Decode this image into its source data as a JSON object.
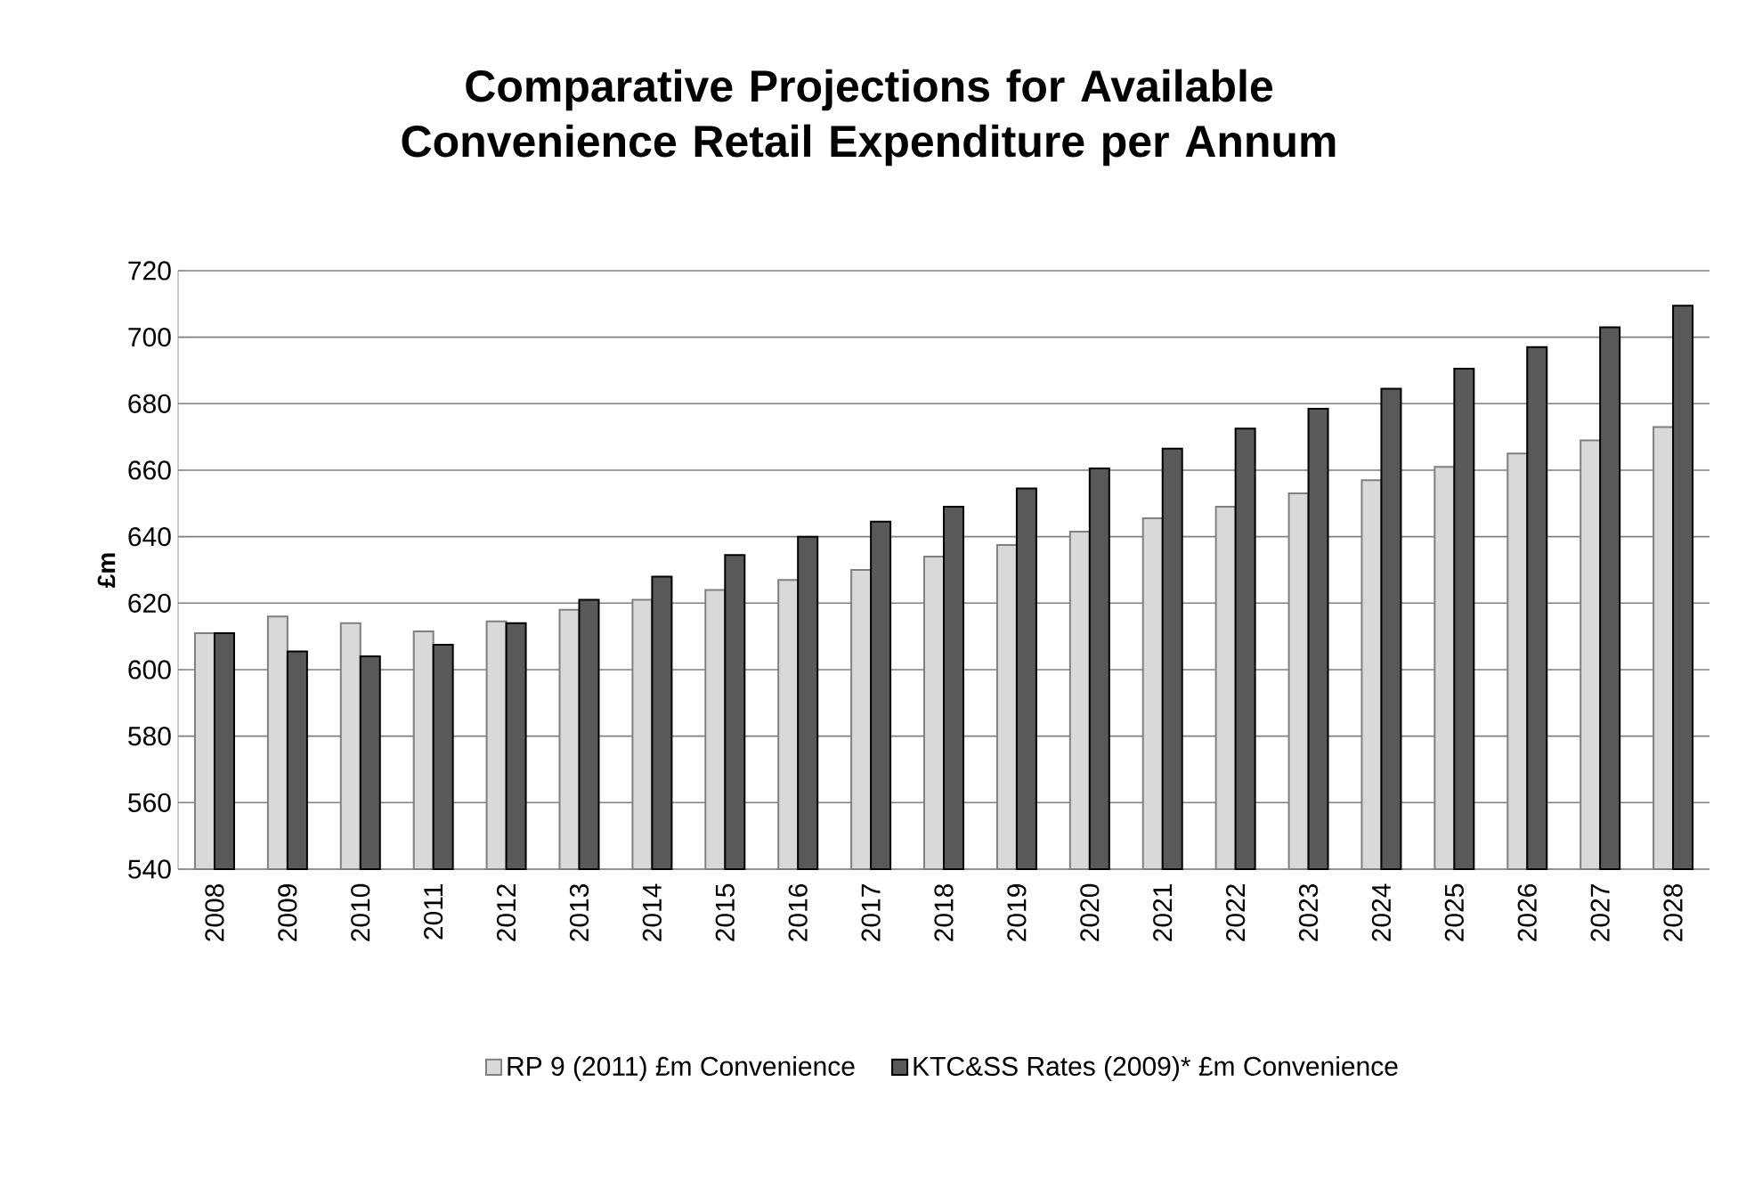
{
  "chart_data": {
    "type": "bar",
    "title": "Comparative Projections for Available Convenience Retail Expenditure per Annum",
    "ylabel": "£m",
    "categories": [
      "2008",
      "2009",
      "2010",
      "2011",
      "2012",
      "2013",
      "2014",
      "2015",
      "2016",
      "2017",
      "2018",
      "2019",
      "2020",
      "2021",
      "2022",
      "2023",
      "2024",
      "2025",
      "2026",
      "2027",
      "2028"
    ],
    "series": [
      {
        "name": "RP 9 (2011) £m Convenience",
        "color": "#d9d9d9",
        "values": [
          611,
          616,
          614,
          611.5,
          614.5,
          618,
          621,
          624,
          627,
          630,
          634,
          637.5,
          641.5,
          645.5,
          649,
          653,
          657,
          661,
          665,
          669,
          673
        ]
      },
      {
        "name": "KTC&SS Rates (2009)* £m Convenience",
        "color": "#595959",
        "values": [
          611,
          605.5,
          604,
          607.5,
          614,
          621,
          628,
          634.5,
          640,
          644.5,
          649,
          654.5,
          660.5,
          666.5,
          672.5,
          678.5,
          684.5,
          690.5,
          697,
          703,
          709.5
        ]
      }
    ],
    "ylim": [
      540,
      720
    ],
    "yticks": [
      540,
      560,
      580,
      600,
      620,
      640,
      660,
      680,
      700,
      720
    ],
    "grid": "y",
    "legend": "bottom"
  }
}
